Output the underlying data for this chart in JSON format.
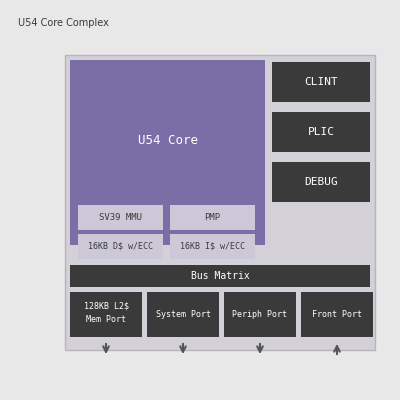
{
  "title": "U54 Core Complex",
  "bg_color": "#e8e8e8",
  "fig_bg": "#e8e8e8",
  "purple_color": "#7b6ea6",
  "dark_box_color": "#3a3a3a",
  "light_sub_color": "#d8d4e0",
  "bus_matrix_color": "#3a3a3a",
  "port_box_color": "#3a3a3a",
  "white_text": "#ffffff",
  "dark_text": "#3a3a3a",
  "outer_box_color": "#c8c8c8",
  "inner_light_bg": "#d0ccd8",
  "main_title": "U54 Core Complex",
  "u54_label": "U54 Core",
  "clint_label": "CLINT",
  "plic_label": "PLIC",
  "debug_label": "DEBUG",
  "sv39_label": "SV39 MMU",
  "pmp_label": "PMP",
  "dcache_label": "16KB D$ w/ECC",
  "icache_label": "16KB I$ w/ECC",
  "bus_matrix_label": "Bus Matrix",
  "port1_line1": "128KB L2$",
  "port1_line2": "Mem Port",
  "port2_label": "System Port",
  "port3_label": "Periph Port",
  "port4_label": "Front Port",
  "arrow1_down": true,
  "arrow2_down": true,
  "arrow3_down": true,
  "arrow4_up": true
}
